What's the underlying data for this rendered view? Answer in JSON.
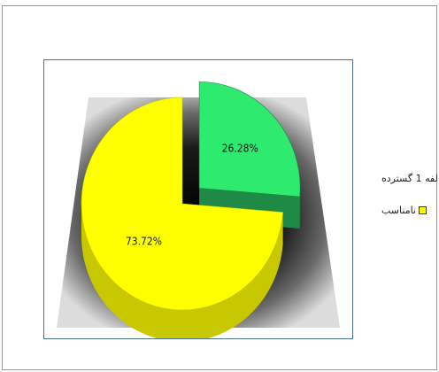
{
  "chart_data": {
    "type": "pie",
    "style": "3d exploded pie",
    "slices": [
      {
        "label": "لفه 1 گسترده",
        "value": 26.28,
        "display": "26.28%",
        "color": "#2eea6e",
        "side_color": "#1f8a45",
        "exploded": true
      },
      {
        "label": "نامناسب",
        "value": 73.72,
        "display": "73.72%",
        "color": "#ffff00",
        "side_color": "#c8c800",
        "exploded": false
      }
    ],
    "legend": {
      "placement": "right",
      "entries": [
        "لفه 1 گسترده",
        "نامناسب"
      ]
    },
    "title": ""
  }
}
